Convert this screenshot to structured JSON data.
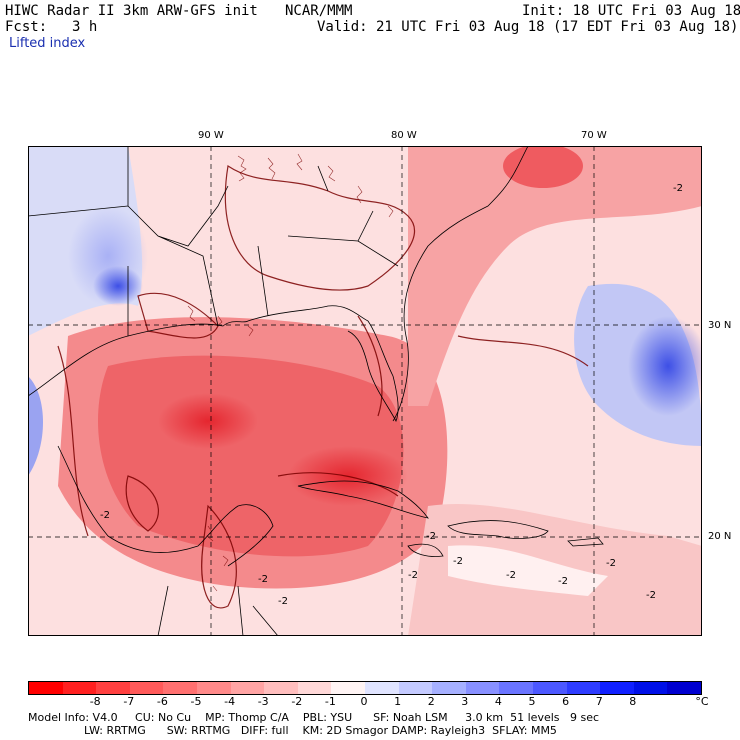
{
  "header": {
    "model_title": "HIWC Radar II 3km ARW-GFS init",
    "org": "NCAR/MMM",
    "init": "Init: 18 UTC Fri 03 Aug 18",
    "fcst_label": "Fcst:",
    "fcst_value": "3 h",
    "valid": "Valid: 21 UTC Fri 03 Aug 18 (17 EDT Fri 03 Aug 18)",
    "field": "Lifted index"
  },
  "map": {
    "lon_labels": [
      "90 W",
      "80 W",
      "70 W"
    ],
    "lat_labels": [
      "30 N",
      "20 N"
    ],
    "contour_labels": [
      "-2",
      "-2",
      "-2",
      "-2",
      "-2",
      "-2",
      "-2",
      "-2",
      "-2",
      "-2",
      "-2"
    ],
    "colors": {
      "strong_neg": "#e8323a",
      "mid_neg": "#f4787c",
      "weak_neg": "#fbc3c3",
      "pos": "#b7bdf5",
      "strong_pos": "#4a5ae8",
      "contour": "#7a0000"
    }
  },
  "colorbar": {
    "ticks": [
      "-8",
      "-7",
      "-6",
      "-5",
      "-4",
      "-3",
      "-2",
      "-1",
      "0",
      "1",
      "2",
      "3",
      "4",
      "5",
      "6",
      "7",
      "8"
    ],
    "unit": "°C",
    "colors": [
      "#ff0000",
      "#ff2020",
      "#ff4040",
      "#ff5a5a",
      "#ff7070",
      "#ff8a8a",
      "#ffa4a4",
      "#ffbebe",
      "#ffd8d8",
      "#fff4f4",
      "#e0e4ff",
      "#c4caff",
      "#a6b0ff",
      "#8890ff",
      "#6a74ff",
      "#4c58ff",
      "#2e3cff",
      "#1020ff",
      "#0010e8",
      "#0000d0"
    ]
  },
  "footer": {
    "line1": "Model Info: V4.0     CU: No Cu    MP: Thomp C/A    PBL: YSU      SF: Noah LSM     3.0 km  51 levels   9 sec",
    "line2": "                LW: RRTMG      SW: RRTMG   DIFF: full    KM: 2D Smagor DAMP: Rayleigh3  SFLAY: MM5"
  }
}
